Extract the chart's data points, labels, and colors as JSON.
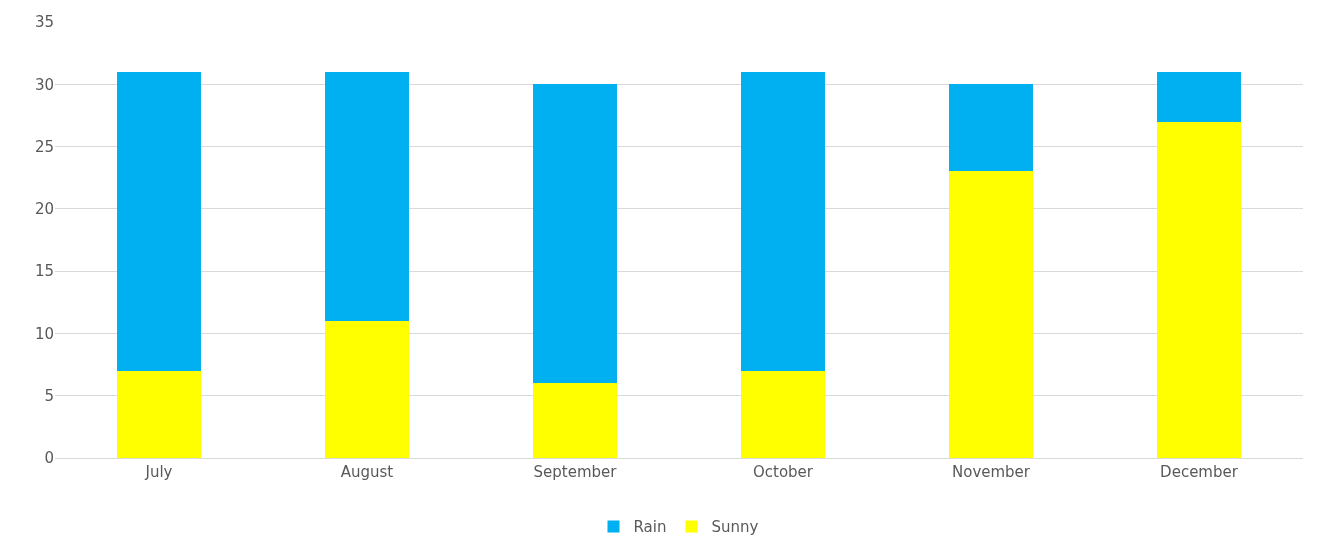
{
  "chart_data": {
    "type": "bar",
    "stacked": true,
    "categories": [
      "July",
      "August",
      "September",
      "October",
      "November",
      "December"
    ],
    "series": [
      {
        "name": "Sunny",
        "color": "#ffff00",
        "values": [
          7,
          11,
          6,
          7,
          23,
          27
        ]
      },
      {
        "name": "Rain",
        "color": "#00b0f0",
        "values": [
          24,
          20,
          24,
          24,
          7,
          4
        ]
      }
    ],
    "ylim": [
      0,
      35
    ],
    "yticks": [
      0,
      5,
      10,
      15,
      20,
      25,
      30,
      35
    ],
    "grid": "y",
    "legend": "bottom"
  }
}
